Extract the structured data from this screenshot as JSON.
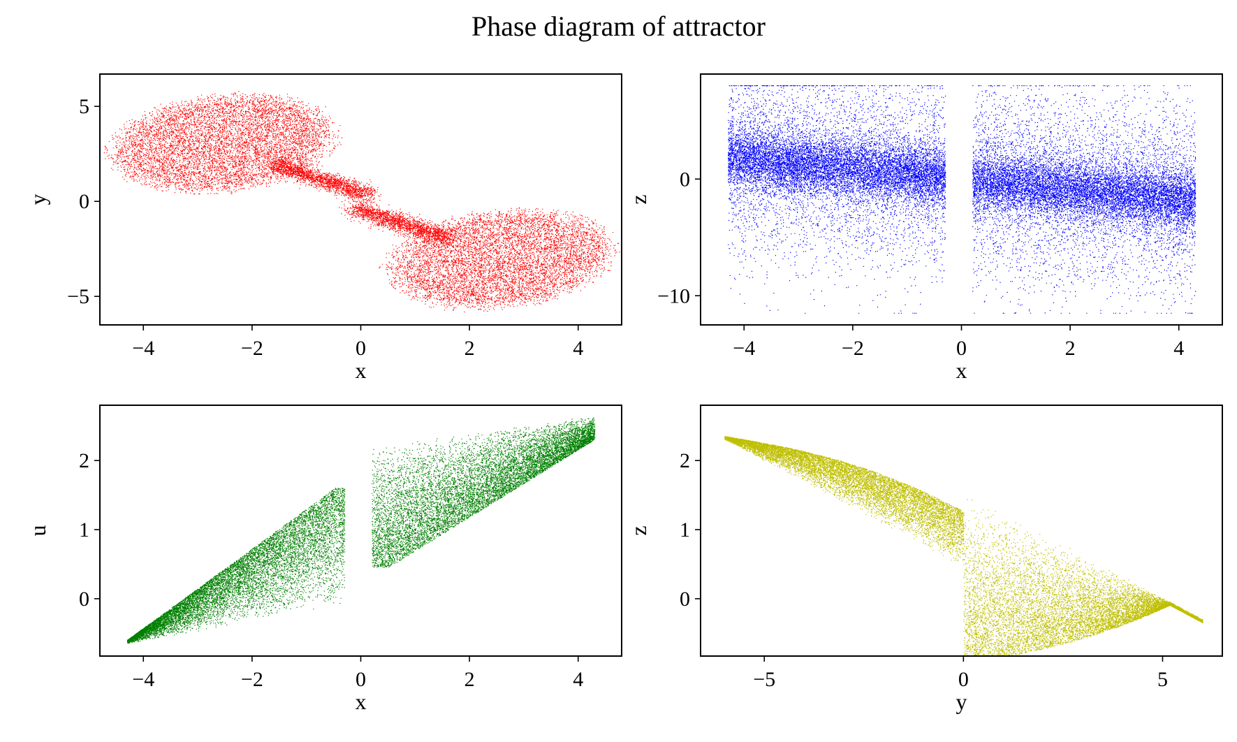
{
  "figure": {
    "title": "Phase diagram of attractor"
  },
  "chart_data": [
    {
      "type": "scatter",
      "title": "",
      "xlabel": "x",
      "ylabel": "y",
      "xlim": [
        -4.8,
        4.8
      ],
      "ylim": [
        -6.5,
        6.7
      ],
      "xticks": [
        -4,
        -2,
        0,
        2,
        4
      ],
      "yticks": [
        -5,
        0,
        5
      ],
      "xticklabels": [
        "−4",
        "−2",
        "0",
        "2",
        "4"
      ],
      "yticklabels": [
        "−5",
        "0",
        "5"
      ],
      "color": "#ff0000",
      "point_count": 18000,
      "cloud": {
        "shape": "two lobes joined at the origin",
        "upper_lobe": {
          "x_range": [
            -4.3,
            0.15
          ],
          "y_range": [
            0.1,
            6.0
          ],
          "center": [
            -2.6,
            3.2
          ]
        },
        "lower_lobe": {
          "x_range": [
            -0.15,
            4.3
          ],
          "y_range": [
            -5.9,
            -0.1
          ],
          "center": [
            2.6,
            -3.2
          ]
        }
      }
    },
    {
      "type": "scatter",
      "title": "",
      "xlabel": "x",
      "ylabel": "z",
      "xlim": [
        -4.8,
        4.8
      ],
      "ylim": [
        -12.5,
        9.0
      ],
      "xticks": [
        -4,
        -2,
        0,
        2,
        4
      ],
      "yticks": [
        -10,
        0
      ],
      "xticklabels": [
        "−4",
        "−2",
        "0",
        "2",
        "4"
      ],
      "yticklabels": [
        "−10",
        "0"
      ],
      "color": "#0000ff",
      "point_count": 26000,
      "cloud": {
        "shape": "dense diagonal band with sparse halo",
        "band_left": {
          "x_range": [
            -4.3,
            -0.3
          ],
          "z_center_at_x_min": 1.8,
          "z_center_at_x_max": 0.2
        },
        "band_right": {
          "x_range": [
            0.2,
            4.3
          ],
          "z_center_at_x_min": -0.2,
          "z_center_at_x_max": -1.8
        },
        "halo_z_range": [
          -11.5,
          8.0
        ]
      }
    },
    {
      "type": "scatter",
      "title": "",
      "xlabel": "x",
      "ylabel": "u",
      "xlim": [
        -4.8,
        4.8
      ],
      "ylim": [
        -0.83,
        2.8
      ],
      "xticks": [
        -4,
        -2,
        0,
        2,
        4
      ],
      "yticks": [
        0,
        1,
        2
      ],
      "xticklabels": [
        "−4",
        "−2",
        "0",
        "2",
        "4"
      ],
      "yticklabels": [
        "0",
        "1",
        "2"
      ],
      "color": "#008000",
      "point_count": 20000,
      "cloud": {
        "shape": "two lobes, rising overall",
        "left_lobe": {
          "x_range": [
            -4.3,
            -0.3
          ],
          "u_range": [
            -0.65,
            1.6
          ]
        },
        "right_lobe": {
          "x_range": [
            0.2,
            4.3
          ],
          "u_range": [
            0.45,
            2.65
          ]
        }
      }
    },
    {
      "type": "scatter",
      "title": "",
      "xlabel": "y",
      "ylabel": "z",
      "xlim": [
        -6.6,
        6.5
      ],
      "ylim": [
        -0.83,
        2.8
      ],
      "xticks": [
        -5,
        0,
        5
      ],
      "yticks": [
        0,
        1,
        2
      ],
      "xticklabels": [
        "−5",
        "0",
        "5"
      ],
      "yticklabels": [
        "0",
        "1",
        "2"
      ],
      "color": "#bfbf00",
      "point_count": 20000,
      "cloud": {
        "shape": "two lobes, falling overall",
        "left_lobe": {
          "x_range": [
            -6.0,
            0.0
          ],
          "z_range": [
            0.45,
            2.65
          ]
        },
        "right_lobe": {
          "x_range": [
            0.0,
            6.0
          ],
          "z_range": [
            -0.65,
            1.55
          ]
        }
      }
    }
  ]
}
